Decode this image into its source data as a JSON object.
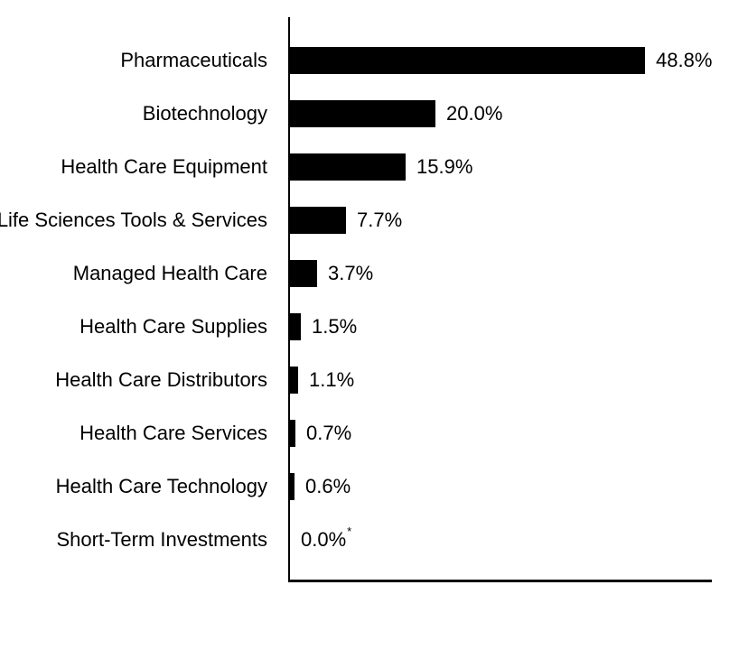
{
  "chart_data": {
    "type": "bar",
    "orientation": "horizontal",
    "title": "",
    "xlabel": "",
    "ylabel": "",
    "xlim": [
      0,
      58.3
    ],
    "grid": false,
    "legend": false,
    "bar_color": "#000000",
    "axis_color": "#000000",
    "text_color": "#000000",
    "background_color": "#ffffff",
    "categories": [
      "Pharmaceuticals",
      "Biotechnology",
      "Health Care Equipment",
      "Life Sciences Tools & Services",
      "Managed Health Care",
      "Health Care Supplies",
      "Health Care Distributors",
      "Health Care Services",
      "Health Care Technology",
      "Short-Term Investments"
    ],
    "values": [
      48.8,
      20.0,
      15.9,
      7.7,
      3.7,
      1.5,
      1.1,
      0.7,
      0.6,
      0.0
    ],
    "value_labels": [
      "48.8%",
      "20.0%",
      "15.9%",
      "7.7%",
      "3.7%",
      "1.5%",
      "1.1%",
      "0.7%",
      "0.6%",
      "0.0%"
    ],
    "footnotes": [
      "",
      "",
      "",
      "",
      "",
      "",
      "",
      "",
      "",
      "*"
    ]
  }
}
